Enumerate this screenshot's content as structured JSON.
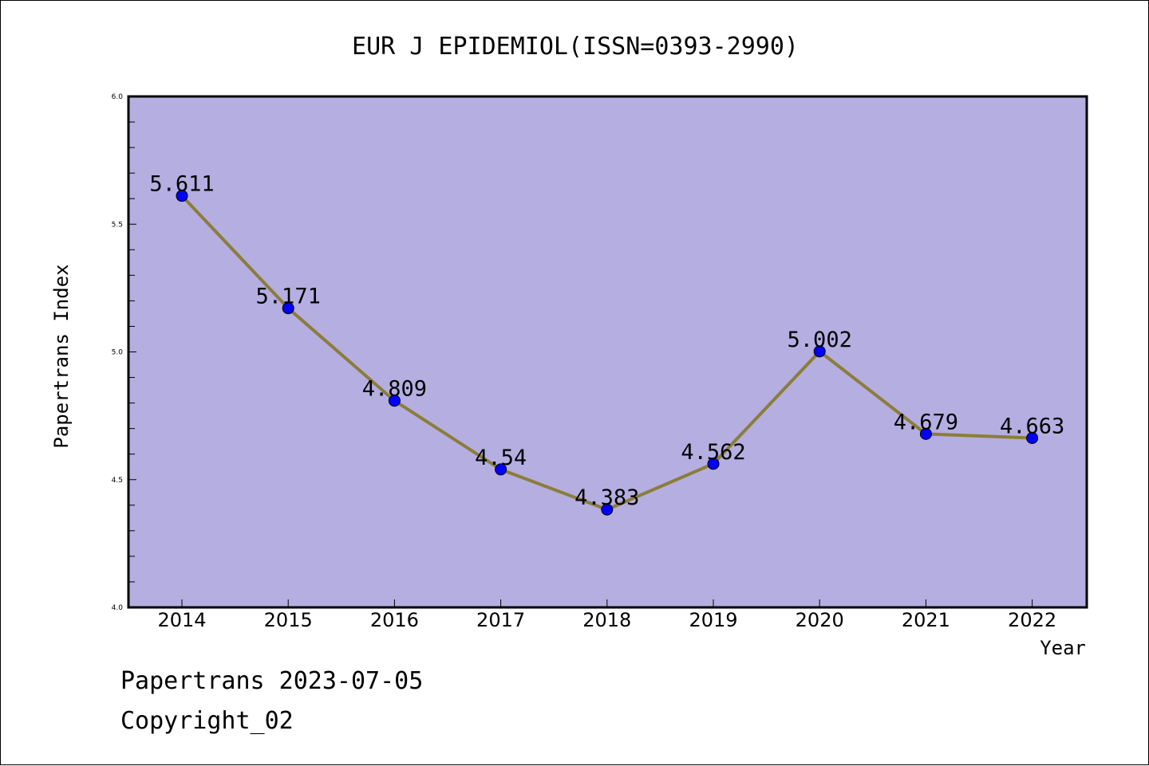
{
  "chart_data": {
    "type": "line",
    "title": "EUR J EPIDEMIOL(ISSN=0393-2990)",
    "xlabel": "Year",
    "ylabel": "Papertrans Index",
    "categories": [
      "2014",
      "2015",
      "2016",
      "2017",
      "2018",
      "2019",
      "2020",
      "2021",
      "2022"
    ],
    "series": [
      {
        "values": [
          5.611,
          5.171,
          4.809,
          4.54,
          4.383,
          4.562,
          5.002,
          4.679,
          4.663
        ],
        "labels": [
          "5.611",
          "5.171",
          "4.809",
          "4.54",
          "4.383",
          "4.562",
          "5.002",
          "4.679",
          "4.663"
        ]
      }
    ],
    "ylim": [
      4.0,
      6.0
    ],
    "yticks": [
      "4.0",
      "4.5",
      "5.0",
      "5.5",
      "6.0"
    ],
    "grid": false,
    "colors": {
      "plot_background": "#b5aee1",
      "line": "#8b7d3a",
      "marker": "#0000ff"
    }
  },
  "footer": {
    "date_line": "Papertrans 2023-07-05",
    "copyright_line": "Copyright_02"
  }
}
